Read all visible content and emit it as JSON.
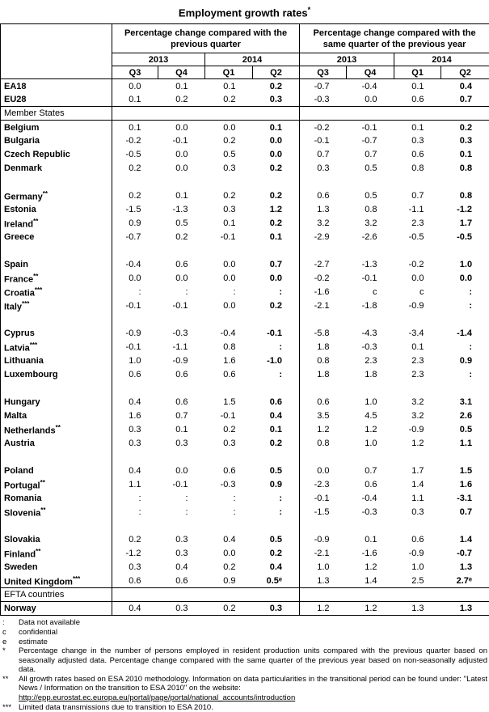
{
  "title": {
    "text": "Employment growth rates",
    "sup": "*"
  },
  "table": {
    "group_headers": [
      "Percentage change compared with the previous quarter",
      "Percentage change compared with the same quarter of the previous year"
    ],
    "years": [
      "2013",
      "2014",
      "2013",
      "2014"
    ],
    "quarters": [
      "Q3",
      "Q4",
      "Q1",
      "Q2",
      "Q3",
      "Q4",
      "Q1",
      "Q2"
    ],
    "rows": [
      {
        "type": "data",
        "label": "EA18",
        "values": [
          "0.0",
          "0.1",
          "0.1",
          "0.2",
          "-0.7",
          "-0.4",
          "0.1",
          "0.4"
        ]
      },
      {
        "type": "data",
        "label": "EU28",
        "values": [
          "0.1",
          "0.2",
          "0.2",
          "0.3",
          "-0.3",
          "0.0",
          "0.6",
          "0.7"
        ]
      },
      {
        "type": "section",
        "label": "Member States"
      },
      {
        "type": "data",
        "label": "Belgium",
        "values": [
          "0.1",
          "0.0",
          "0.0",
          "0.1",
          "-0.2",
          "-0.1",
          "0.1",
          "0.2"
        ]
      },
      {
        "type": "data",
        "label": "Bulgaria",
        "values": [
          "-0.2",
          "-0.1",
          "0.2",
          "0.0",
          "-0.1",
          "-0.7",
          "0.3",
          "0.3"
        ]
      },
      {
        "type": "data",
        "label": "Czech Republic",
        "values": [
          "-0.5",
          "0.0",
          "0.5",
          "0.0",
          "0.7",
          "0.7",
          "0.6",
          "0.1"
        ]
      },
      {
        "type": "data",
        "label": "Denmark",
        "values": [
          "0.2",
          "0.0",
          "0.3",
          "0.2",
          "0.3",
          "0.5",
          "0.8",
          "0.8"
        ]
      },
      {
        "type": "spacer"
      },
      {
        "type": "data",
        "label": "Germany**",
        "values": [
          "0.2",
          "0.1",
          "0.2",
          "0.2",
          "0.6",
          "0.5",
          "0.7",
          "0.8"
        ]
      },
      {
        "type": "data",
        "label": "Estonia",
        "values": [
          "-1.5",
          "-1.3",
          "0.3",
          "1.2",
          "1.3",
          "0.8",
          "-1.1",
          "-1.2"
        ]
      },
      {
        "type": "data",
        "label": "Ireland**",
        "values": [
          "0.9",
          "0.5",
          "0.1",
          "0.2",
          "3.2",
          "3.2",
          "2.3",
          "1.7"
        ]
      },
      {
        "type": "data",
        "label": "Greece",
        "values": [
          "-0.7",
          "0.2",
          "-0.1",
          "0.1",
          "-2.9",
          "-2.6",
          "-0.5",
          "-0.5"
        ]
      },
      {
        "type": "spacer"
      },
      {
        "type": "data",
        "label": "Spain",
        "values": [
          "-0.4",
          "0.6",
          "0.0",
          "0.7",
          "-2.7",
          "-1.3",
          "-0.2",
          "1.0"
        ]
      },
      {
        "type": "data",
        "label": "France**",
        "values": [
          "0.0",
          "0.0",
          "0.0",
          "0.0",
          "-0.2",
          "-0.1",
          "0.0",
          "0.0"
        ]
      },
      {
        "type": "data",
        "label": "Croatia***",
        "values": [
          ":",
          ":",
          ":",
          ":",
          "-1.6",
          "c",
          "c",
          ":"
        ]
      },
      {
        "type": "data",
        "label": "Italy***",
        "values": [
          "-0.1",
          "-0.1",
          "0.0",
          "0.2",
          "-2.1",
          "-1.8",
          "-0.9",
          ":"
        ]
      },
      {
        "type": "spacer"
      },
      {
        "type": "data",
        "label": "Cyprus",
        "values": [
          "-0.9",
          "-0.3",
          "-0.4",
          "-0.1",
          "-5.8",
          "-4.3",
          "-3.4",
          "-1.4"
        ]
      },
      {
        "type": "data",
        "label": "Latvia***",
        "values": [
          "-0.1",
          "-1.1",
          "0.8",
          ":",
          "1.8",
          "-0.3",
          "0.1",
          ":"
        ]
      },
      {
        "type": "data",
        "label": "Lithuania",
        "values": [
          "1.0",
          "-0.9",
          "1.6",
          "-1.0",
          "0.8",
          "2.3",
          "2.3",
          "0.9"
        ]
      },
      {
        "type": "data",
        "label": "Luxembourg",
        "values": [
          "0.6",
          "0.6",
          "0.6",
          ":",
          "1.8",
          "1.8",
          "2.3",
          ":"
        ]
      },
      {
        "type": "spacer"
      },
      {
        "type": "data",
        "label": "Hungary",
        "values": [
          "0.4",
          "0.6",
          "1.5",
          "0.6",
          "0.6",
          "1.0",
          "3.2",
          "3.1"
        ]
      },
      {
        "type": "data",
        "label": "Malta",
        "values": [
          "1.6",
          "0.7",
          "-0.1",
          "0.4",
          "3.5",
          "4.5",
          "3.2",
          "2.6"
        ]
      },
      {
        "type": "data",
        "label": "Netherlands**",
        "values": [
          "0.3",
          "0.1",
          "0.2",
          "0.1",
          "1.2",
          "1.2",
          "-0.9",
          "0.5"
        ]
      },
      {
        "type": "data",
        "label": "Austria",
        "values": [
          "0.3",
          "0.3",
          "0.3",
          "0.2",
          "0.8",
          "1.0",
          "1.2",
          "1.1"
        ]
      },
      {
        "type": "spacer"
      },
      {
        "type": "data",
        "label": "Poland",
        "values": [
          "0.4",
          "0.0",
          "0.6",
          "0.5",
          "0.0",
          "0.7",
          "1.7",
          "1.5"
        ]
      },
      {
        "type": "data",
        "label": "Portugal**",
        "values": [
          "1.1",
          "-0.1",
          "-0.3",
          "0.9",
          "-2.3",
          "0.6",
          "1.4",
          "1.6"
        ]
      },
      {
        "type": "data",
        "label": "Romania",
        "values": [
          ":",
          ":",
          ":",
          ":",
          "-0.1",
          "-0.4",
          "1.1",
          "-3.1"
        ]
      },
      {
        "type": "data",
        "label": "Slovenia**",
        "values": [
          ":",
          ":",
          ":",
          ":",
          "-1.5",
          "-0.3",
          "0.3",
          "0.7"
        ]
      },
      {
        "type": "spacer"
      },
      {
        "type": "data",
        "label": "Slovakia",
        "values": [
          "0.2",
          "0.3",
          "0.4",
          "0.5",
          "-0.9",
          "0.1",
          "0.6",
          "1.4"
        ]
      },
      {
        "type": "data",
        "label": "Finland**",
        "values": [
          "-1.2",
          "0.3",
          "0.0",
          "0.2",
          "-2.1",
          "-1.6",
          "-0.9",
          "-0.7"
        ]
      },
      {
        "type": "data",
        "label": "Sweden",
        "values": [
          "0.3",
          "0.4",
          "0.2",
          "0.4",
          "1.0",
          "1.2",
          "1.0",
          "1.3"
        ]
      },
      {
        "type": "data",
        "label": "United Kingdom***",
        "values": [
          "0.6",
          "0.6",
          "0.9",
          "0.5ᵉ",
          "1.3",
          "1.4",
          "2.5",
          "2.7ᵉ"
        ]
      },
      {
        "type": "section",
        "label": "EFTA countries"
      },
      {
        "type": "data",
        "label": "Norway",
        "values": [
          "0.4",
          "0.3",
          "0.2",
          "0.3",
          "1.2",
          "1.2",
          "1.3",
          "1.3"
        ]
      }
    ]
  },
  "footnotes": [
    {
      "marker": ":",
      "text": "Data not available"
    },
    {
      "marker": "c",
      "text": "confidential"
    },
    {
      "marker": "e",
      "text": "estimate"
    },
    {
      "marker": "*",
      "text": "Percentage change in the number of persons employed in resident production units compared with the previous quarter based on seasonally adjusted data. Percentage change compared with the same quarter of the previous year based on non-seasonally adjusted data."
    },
    {
      "marker": "**",
      "text": "All growth rates based on ESA 2010 methodology. Information on data particularities in the transitional period can be found under: \"Latest News / Information on the transition to ESA 2010\" on the website:",
      "link": "http://epp.eurostat.ec.europa.eu/portal/page/portal/national_accounts/introduction"
    },
    {
      "marker": "***",
      "text": "Limited data transmissions due to transition to ESA 2010."
    }
  ]
}
